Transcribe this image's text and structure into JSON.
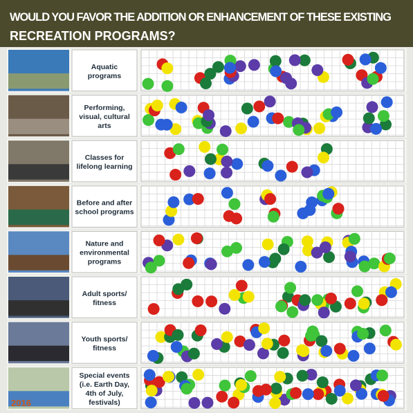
{
  "header": {
    "line1": "WOULD YOU FAVOR THE ADDITION OR ENHANCEMENT OF THESE EXISTING",
    "line2": "RECREATION PROGRAMS?"
  },
  "rows": [
    {
      "label": [
        "Aquatic",
        "programs"
      ]
    },
    {
      "label": [
        "Performing,",
        "visual, cultural",
        "arts"
      ]
    },
    {
      "label": [
        "Classes for",
        "lifelong learning"
      ]
    },
    {
      "label": [
        "Before and after",
        "school programs"
      ]
    },
    {
      "label": [
        "Nature and",
        "environmental",
        "programs"
      ]
    },
    {
      "label": [
        "Adult sports/",
        "fitness"
      ]
    },
    {
      "label": [
        "Youth sports/",
        "fitness"
      ]
    },
    {
      "label": [
        "Special events",
        "(i.e. Earth Day,",
        "4th of July,",
        "festivals)"
      ],
      "photo_caption": "2016"
    }
  ]
}
